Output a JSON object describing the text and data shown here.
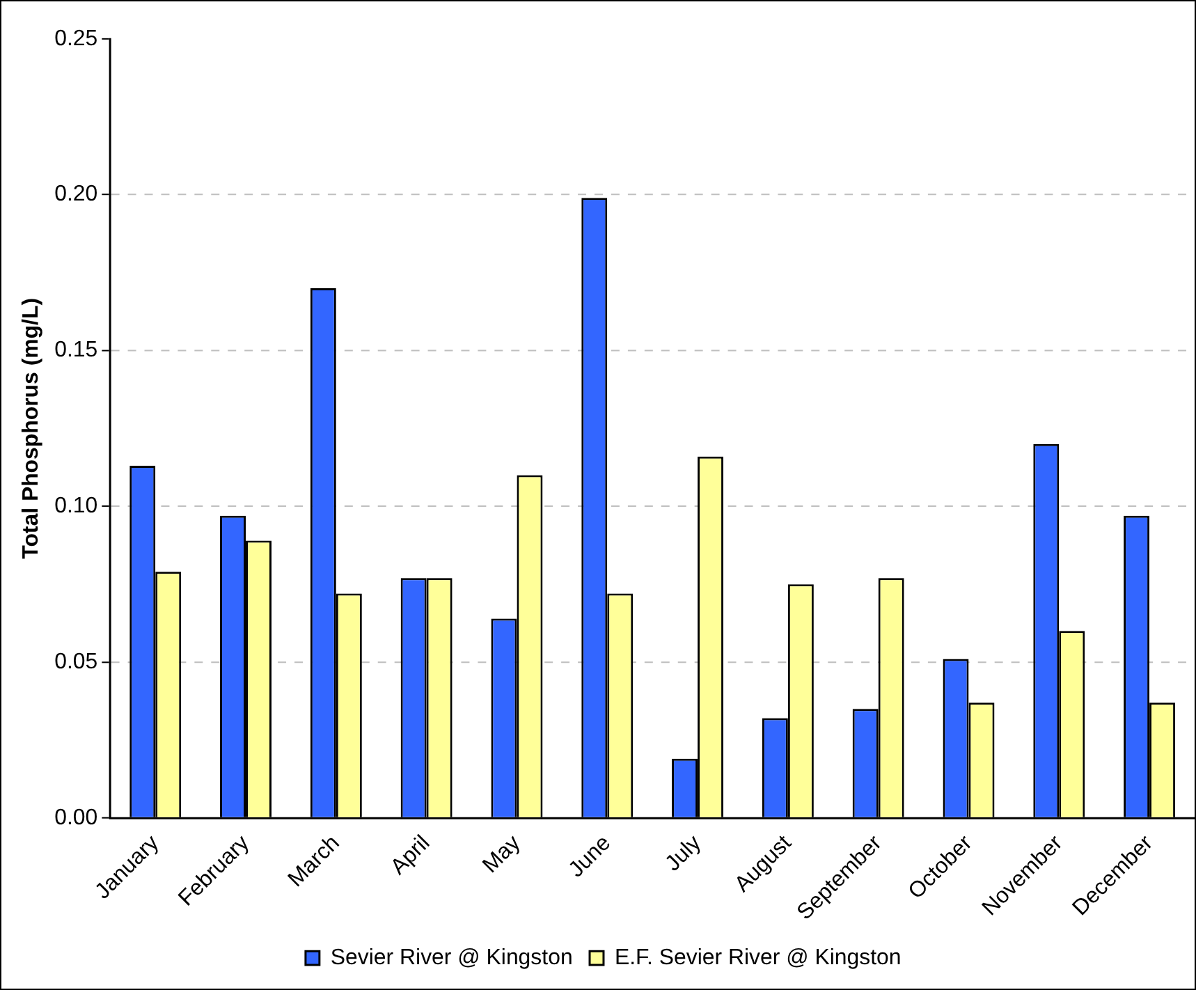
{
  "chart_data": {
    "type": "bar",
    "ylabel": "Total Phosphorus (mg/L)",
    "categories": [
      "January",
      "February",
      "March",
      "April",
      "May",
      "June",
      "July",
      "August",
      "September",
      "October",
      "November",
      "December"
    ],
    "series": [
      {
        "name": "Sevier River @ Kingston",
        "color": "#3366ff",
        "values": [
          0.113,
          0.097,
          0.17,
          0.077,
          0.064,
          0.199,
          0.019,
          0.032,
          0.035,
          0.051,
          0.12,
          0.097
        ]
      },
      {
        "name": "E.F. Sevier River @ Kingston",
        "color": "#ffff99",
        "values": [
          0.079,
          0.089,
          0.072,
          0.077,
          0.11,
          0.072,
          0.116,
          0.075,
          0.077,
          0.037,
          0.06,
          0.037
        ]
      }
    ],
    "ylim": [
      0,
      0.25
    ],
    "yticks": [
      {
        "value": 0,
        "label": "0.00"
      },
      {
        "value": 0.05,
        "label": "0.05"
      },
      {
        "value": 0.1,
        "label": "0.10"
      },
      {
        "value": 0.15,
        "label": "0.15"
      },
      {
        "value": 0.2,
        "label": "0.20"
      },
      {
        "value": 0.25,
        "label": "0.25"
      }
    ],
    "grid": "y",
    "legend": "bottom"
  }
}
